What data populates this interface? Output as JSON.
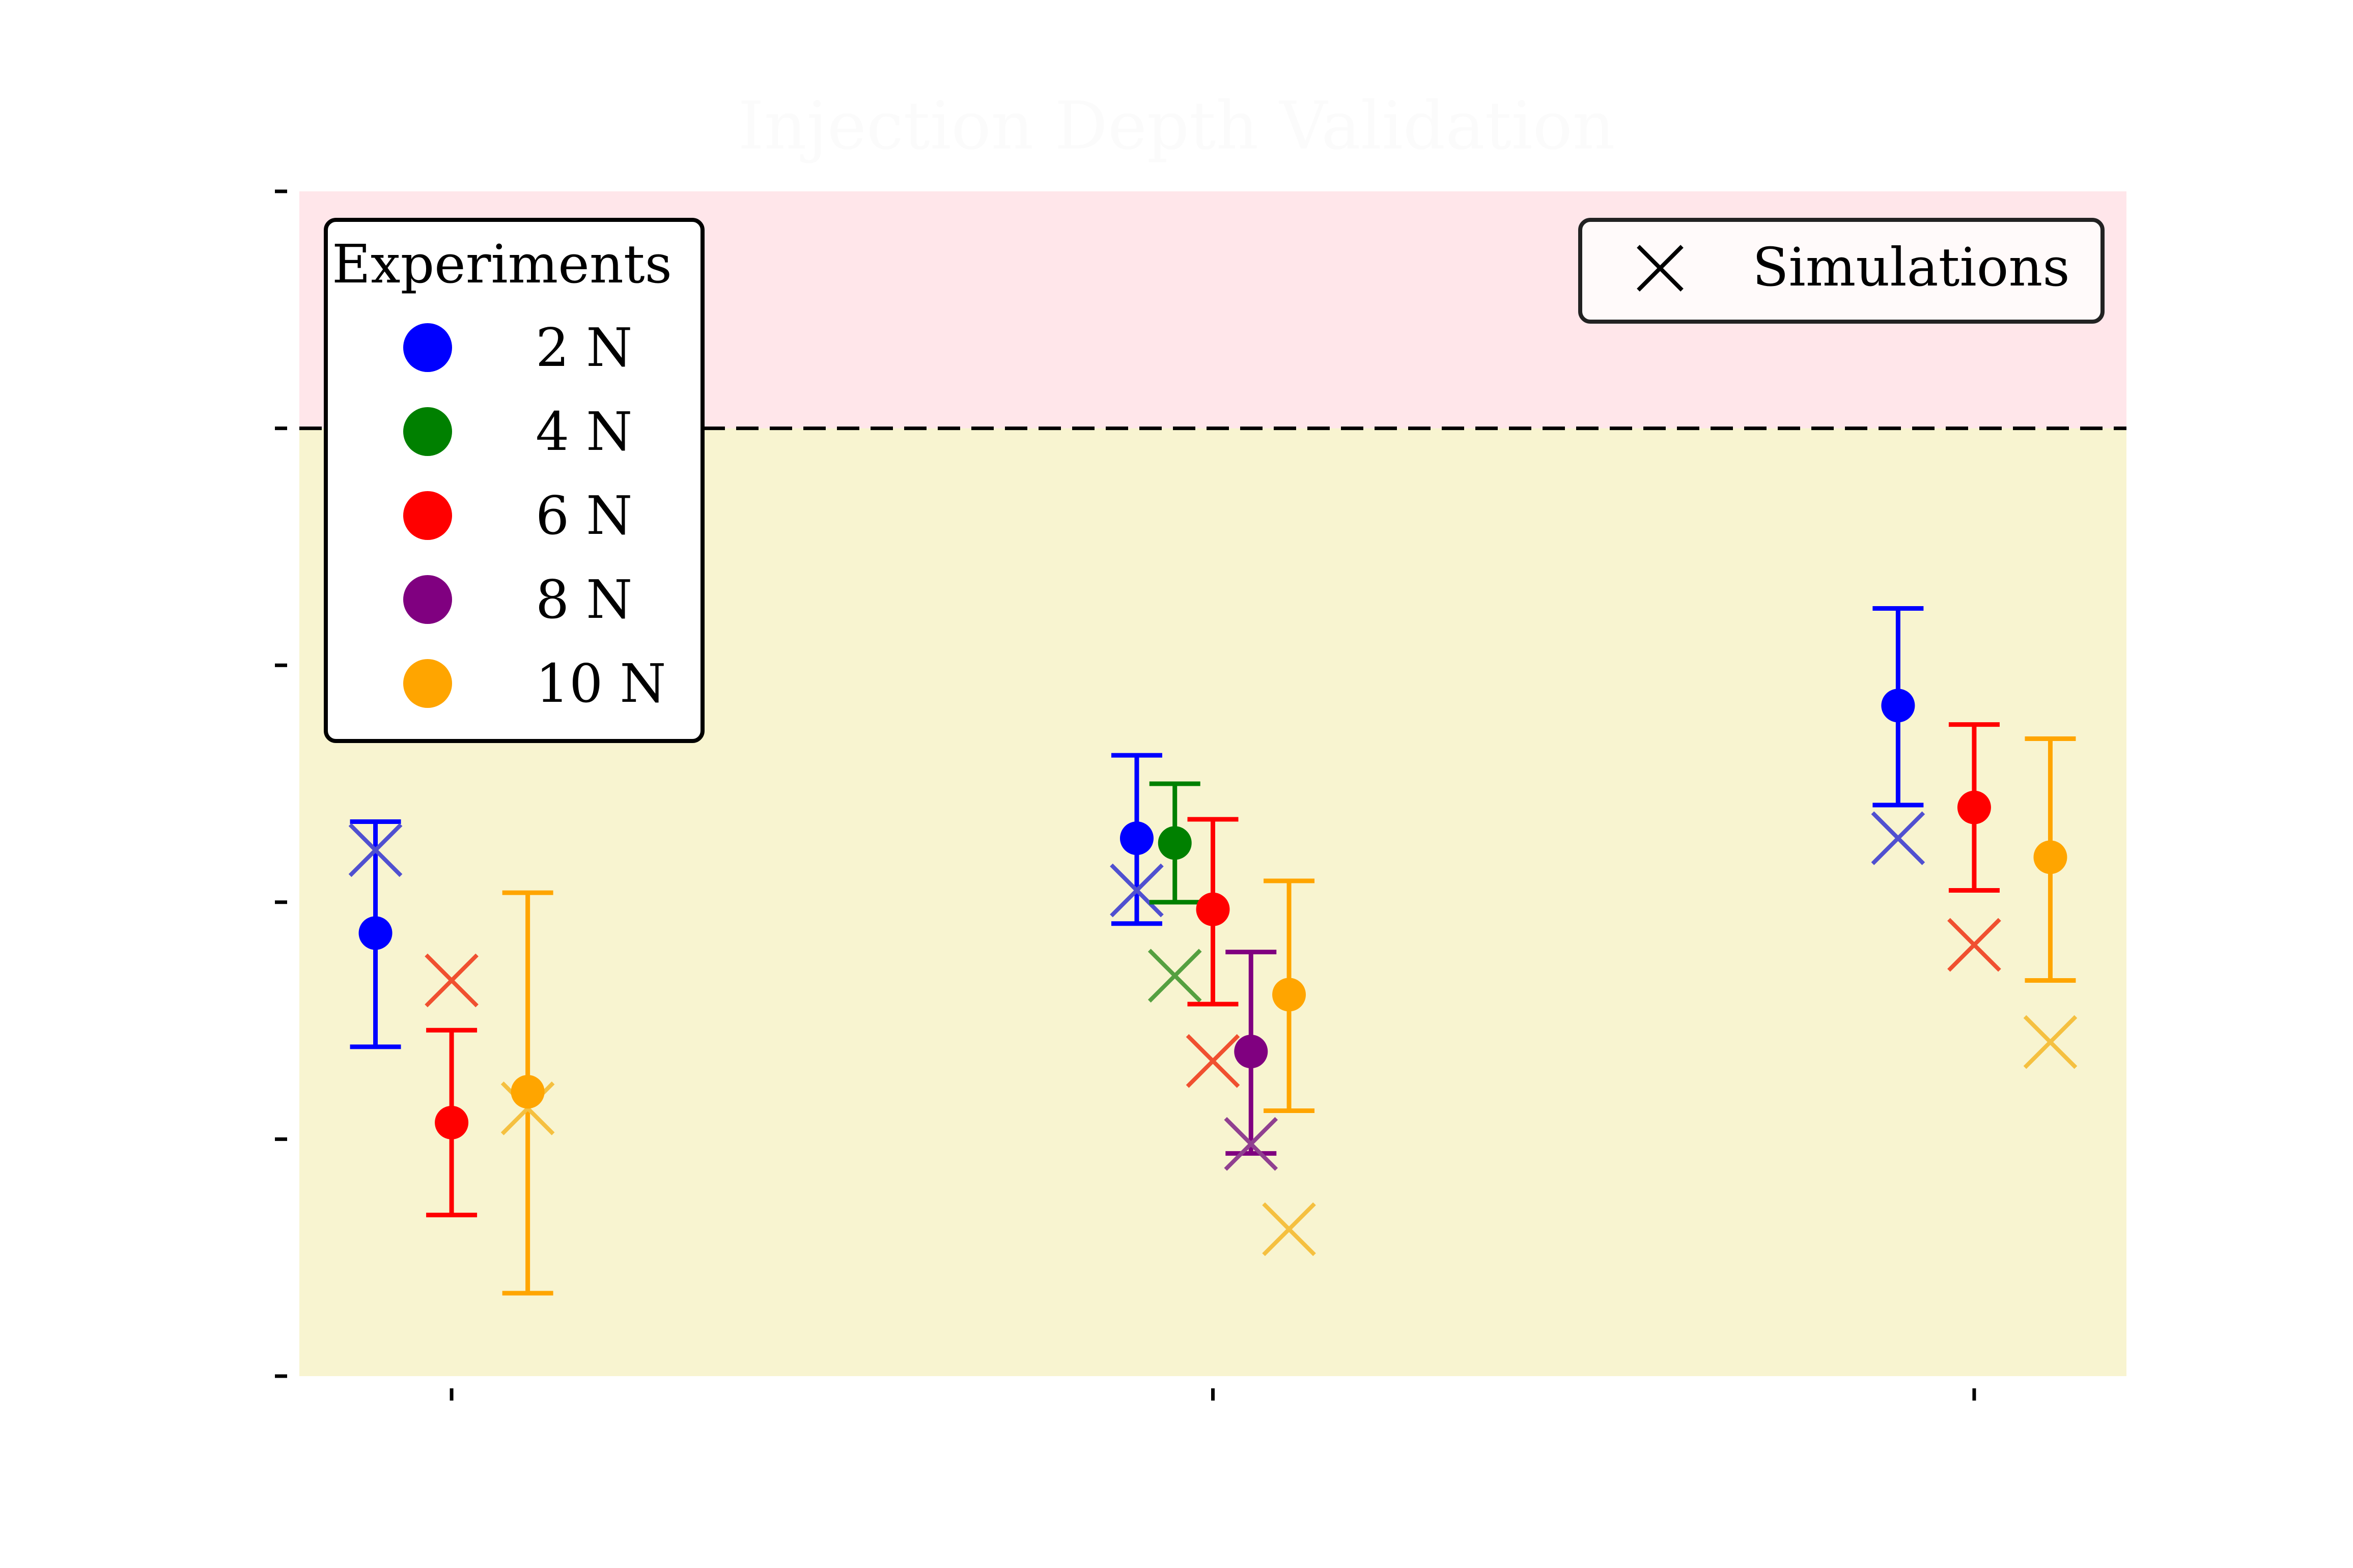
{
  "chart_data": {
    "type": "scatter",
    "title": "Injection Depth Validation",
    "xlabel": "",
    "ylabel": "",
    "x_groups": 3,
    "xlim": [
      -0.2,
      2.2
    ],
    "ylim": [
      0,
      5
    ],
    "threshold": 4.0,
    "regions": {
      "below_color": "#f8f4d0",
      "above_color": "#ffe6ea"
    },
    "grid": false,
    "legend_experiments": {
      "title": "Experiments",
      "placement": "top-left",
      "entries": [
        {
          "label": "2 N",
          "color": "#0000ff"
        },
        {
          "label": "4 N",
          "color": "#008000"
        },
        {
          "label": "6 N",
          "color": "#ff0000"
        },
        {
          "label": "8 N",
          "color": "#800080"
        },
        {
          "label": "10 N",
          "color": "#ffa500"
        }
      ]
    },
    "legend_simulations": {
      "label": "Simulations",
      "placement": "top-right"
    },
    "series": [
      {
        "name": "2 N",
        "color": "#0000ff",
        "sim_color": "#5050d0",
        "points": [
          {
            "x": -0.1,
            "y": 1.87,
            "err_low": 1.39,
            "err_high": 2.34,
            "sim": 2.22
          },
          {
            "x": 0.9,
            "y": 2.27,
            "err_low": 1.91,
            "err_high": 2.62,
            "sim": 2.05
          },
          {
            "x": 1.9,
            "y": 2.83,
            "err_low": 2.41,
            "err_high": 3.24,
            "sim": 2.27
          }
        ]
      },
      {
        "name": "4 N",
        "color": "#008000",
        "sim_color": "#55a040",
        "points": [
          {
            "x": 0.95,
            "y": 2.25,
            "err_low": 2.0,
            "err_high": 2.5,
            "sim": 1.69
          }
        ]
      },
      {
        "name": "6 N",
        "color": "#ff0000",
        "sim_color": "#f05030",
        "points": [
          {
            "x": 0.0,
            "y": 1.07,
            "err_low": 0.68,
            "err_high": 1.46,
            "sim": 1.67
          },
          {
            "x": 1.0,
            "y": 1.97,
            "err_low": 1.57,
            "err_high": 2.35,
            "sim": 1.33
          },
          {
            "x": 2.0,
            "y": 2.4,
            "err_low": 2.05,
            "err_high": 2.75,
            "sim": 1.82
          }
        ]
      },
      {
        "name": "8 N",
        "color": "#800080",
        "sim_color": "#904090",
        "points": [
          {
            "x": 1.05,
            "y": 1.37,
            "err_low": 0.94,
            "err_high": 1.79,
            "sim": 0.98
          }
        ]
      },
      {
        "name": "10 N",
        "color": "#ffa500",
        "sim_color": "#f5c040",
        "points": [
          {
            "x": 0.1,
            "y": 1.2,
            "err_low": 0.35,
            "err_high": 2.04,
            "sim": 1.13
          },
          {
            "x": 1.1,
            "y": 1.61,
            "err_low": 1.12,
            "err_high": 2.09,
            "sim": 0.62
          },
          {
            "x": 2.1,
            "y": 2.19,
            "err_low": 1.67,
            "err_high": 2.69,
            "sim": 1.41
          }
        ]
      }
    ]
  }
}
